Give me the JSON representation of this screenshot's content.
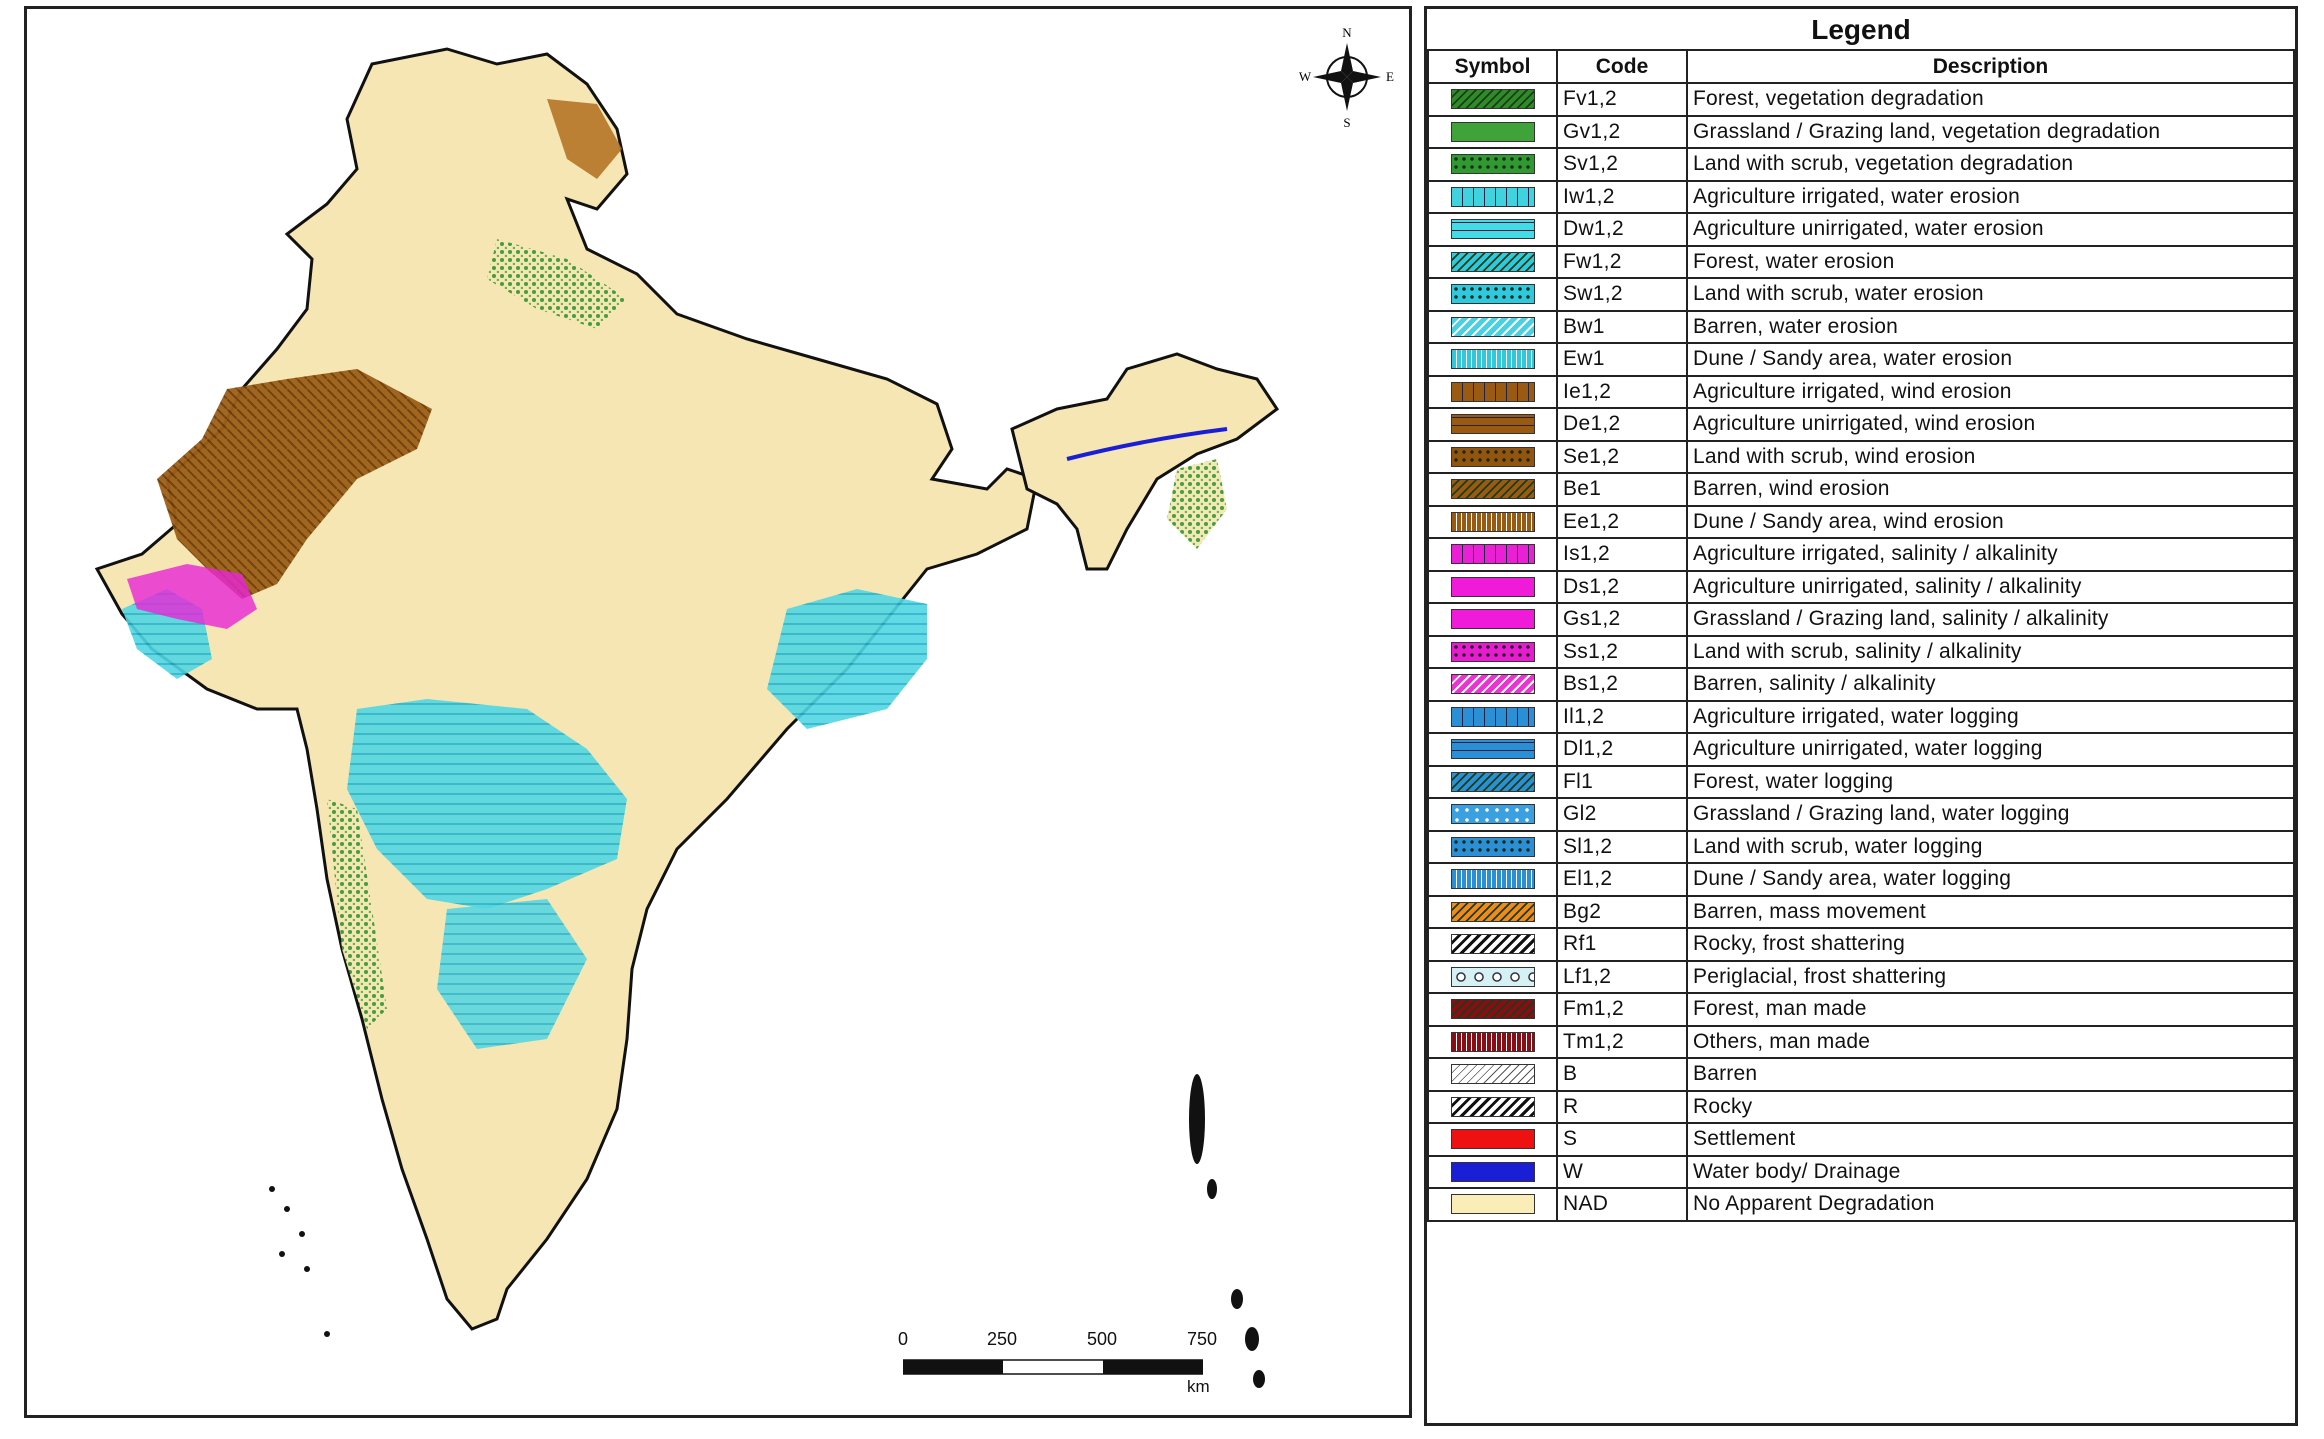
{
  "legend": {
    "title": "Legend",
    "headers": {
      "symbol": "Symbol",
      "code": "Code",
      "description": "Description"
    },
    "rows": [
      {
        "code": "Fv1,2",
        "description": "Forest, vegetation degradation",
        "color": "#2f8a2a",
        "pattern": "hatch-dark"
      },
      {
        "code": "Gv1,2",
        "description": "Grassland / Grazing land, vegetation degradation",
        "color": "#3fa33a",
        "pattern": "solid"
      },
      {
        "code": "Sv1,2",
        "description": "Land with scrub, vegetation degradation",
        "color": "#2e9a30",
        "pattern": "dots"
      },
      {
        "code": "Iw1,2",
        "description": "Agriculture irrigated, water erosion",
        "color": "#3fd3e0",
        "pattern": "vlines"
      },
      {
        "code": "Dw1,2",
        "description": "Agriculture unirrigated, water erosion",
        "color": "#43dbe6",
        "pattern": "hlines"
      },
      {
        "code": "Fw1,2",
        "description": "Forest, water erosion",
        "color": "#2fc9dd",
        "pattern": "hatch-dark"
      },
      {
        "code": "Sw1,2",
        "description": "Land with scrub, water erosion",
        "color": "#2fc9dd",
        "pattern": "dots"
      },
      {
        "code": "Bw1",
        "description": "Barren, water erosion",
        "color": "#49d1e3",
        "pattern": "hatch-light"
      },
      {
        "code": "Ew1",
        "description": "Dune / Sandy area, water erosion",
        "color": "#33c7dc",
        "pattern": "grid"
      },
      {
        "code": "Ie1,2",
        "description": "Agriculture irrigated, wind erosion",
        "color": "#9a5a12",
        "pattern": "vlines"
      },
      {
        "code": "De1,2",
        "description": "Agriculture unirrigated, wind erosion",
        "color": "#9a5a12",
        "pattern": "hlines"
      },
      {
        "code": "Se1,2",
        "description": "Land with scrub, wind erosion",
        "color": "#93550e",
        "pattern": "dots"
      },
      {
        "code": "Be1",
        "description": "Barren, wind erosion",
        "color": "#9a5a12",
        "pattern": "hatch-dark"
      },
      {
        "code": "Ee1,2",
        "description": "Dune / Sandy area, wind erosion",
        "color": "#9a5a12",
        "pattern": "grid"
      },
      {
        "code": "Is1,2",
        "description": "Agriculture irrigated, salinity / alkalinity",
        "color": "#ea1fd6",
        "pattern": "vlines"
      },
      {
        "code": "Ds1,2",
        "description": "Agriculture unirrigated, salinity / alkalinity",
        "color": "#f01ad9",
        "pattern": "solid"
      },
      {
        "code": "Gs1,2",
        "description": "Grassland / Grazing land, salinity / alkalinity",
        "color": "#f01ad9",
        "pattern": "solid"
      },
      {
        "code": "Ss1,2",
        "description": "Land with scrub, salinity / alkalinity",
        "color": "#e81ad2",
        "pattern": "dots"
      },
      {
        "code": "Bs1,2",
        "description": "Barren, salinity / alkalinity",
        "color": "#e933d3",
        "pattern": "hatch-light"
      },
      {
        "code": "Il1,2",
        "description": "Agriculture irrigated, water logging",
        "color": "#2b8fd6",
        "pattern": "vlines"
      },
      {
        "code": "Dl1,2",
        "description": "Agriculture unirrigated, water logging",
        "color": "#2b8fd6",
        "pattern": "hlines"
      },
      {
        "code": "Fl1",
        "description": "Forest, water logging",
        "color": "#2b8fd6",
        "pattern": "hatch-dark"
      },
      {
        "code": "Gl2",
        "description": "Grassland / Grazing land, water logging",
        "color": "#3aa0e0",
        "pattern": "dots-light"
      },
      {
        "code": "Sl1,2",
        "description": "Land with scrub, water logging",
        "color": "#2b8fd6",
        "pattern": "dots"
      },
      {
        "code": "El1,2",
        "description": "Dune / Sandy area, water logging",
        "color": "#2b8fd6",
        "pattern": "grid"
      },
      {
        "code": "Bg2",
        "description": "Barren, mass movement",
        "color": "#f08a1c",
        "pattern": "hatch-dark"
      },
      {
        "code": "Rf1",
        "description": "Rocky, frost shattering",
        "color": "#ffffff",
        "pattern": "hatch-black"
      },
      {
        "code": "Lf1,2",
        "description": "Periglacial, frost shattering",
        "color": "#d6f1f4",
        "pattern": "circles"
      },
      {
        "code": "Fm1,2",
        "description": "Forest, man made",
        "color": "#8a0d16",
        "pattern": "hatch-dark"
      },
      {
        "code": "Tm1,2",
        "description": "Others, man made",
        "color": "#8a0d16",
        "pattern": "grid"
      },
      {
        "code": "B",
        "description": "Barren",
        "color": "#ffffff",
        "pattern": "hatch-thin"
      },
      {
        "code": "R",
        "description": "Rocky",
        "color": "#ffffff",
        "pattern": "hatch-black"
      },
      {
        "code": "S",
        "description": "Settlement",
        "color": "#ee1111",
        "pattern": "solid"
      },
      {
        "code": "W",
        "description": "Water body/ Drainage",
        "color": "#1a1fd6",
        "pattern": "solid"
      },
      {
        "code": "NAD",
        "description": "No Apparent Degradation",
        "color": "#fbedb8",
        "pattern": "solid"
      }
    ]
  },
  "compass": {
    "n": "N",
    "s": "S",
    "e": "E",
    "w": "W"
  },
  "scale": {
    "ticks": [
      "0",
      "250",
      "500",
      "750"
    ],
    "unit": "km"
  }
}
